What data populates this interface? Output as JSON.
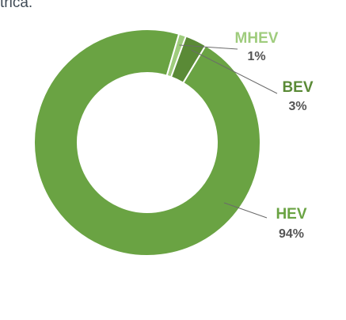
{
  "page": {
    "top_text": "trica."
  },
  "chart_data": {
    "type": "pie",
    "donut": true,
    "title": "",
    "legend": "none",
    "categories": [
      "HEV",
      "MHEV",
      "BEV"
    ],
    "values": [
      94,
      1,
      3
    ],
    "labels": [
      {
        "name": "HEV",
        "percent": "94%",
        "color": "#6aa343"
      },
      {
        "name": "MHEV",
        "percent": "1%",
        "color": "#9fcc7d"
      },
      {
        "name": "BEV",
        "percent": "3%",
        "color": "#5a8a36"
      }
    ]
  }
}
